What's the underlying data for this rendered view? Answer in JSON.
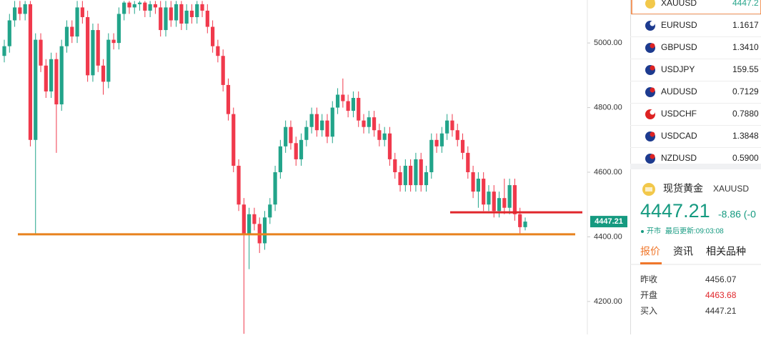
{
  "chart_data": {
    "type": "candlestick",
    "open": [
      4960,
      4990,
      5070,
      5110,
      5090,
      5120,
      4700,
      5010,
      4930,
      4850,
      4950,
      4810,
      4990,
      5050,
      5020,
      5110,
      5080,
      4900,
      5040,
      4930,
      4880,
      5010,
      5000,
      5090,
      5125,
      5110,
      5120,
      5125,
      5100,
      5120,
      5110,
      5040,
      5110,
      5070,
      5120,
      5060,
      5100,
      5080,
      5120,
      5100,
      5050,
      4990,
      4960,
      4870,
      4780,
      4620,
      4500,
      4410,
      4470,
      4440,
      4380,
      4460,
      4500,
      4600,
      4680,
      4740,
      4690,
      4640,
      4700,
      4740,
      4780,
      4730,
      4760,
      4710,
      4800,
      4840,
      4820,
      4790,
      4830,
      4760,
      4740,
      4770,
      4730,
      4700,
      4720,
      4640,
      4600,
      4560,
      4620,
      4560,
      4640,
      4560,
      4600,
      4700,
      4680,
      4720,
      4760,
      4730,
      4700,
      4660,
      4600,
      4540,
      4580,
      4500,
      4540,
      4480,
      4520,
      4490,
      4560,
      4470,
      4430
    ],
    "high": [
      5010,
      5090,
      5130,
      5130,
      5130,
      5130,
      5030,
      5030,
      4950,
      4970,
      4970,
      5010,
      5070,
      5070,
      5130,
      5130,
      5100,
      5060,
      5060,
      4950,
      5030,
      5030,
      5110,
      5130,
      5130,
      5130,
      5130,
      5130,
      5130,
      5130,
      5130,
      5130,
      5130,
      5130,
      5130,
      5120,
      5120,
      5130,
      5130,
      5120,
      5070,
      5010,
      4980,
      4890,
      4800,
      4640,
      4520,
      4490,
      4490,
      4460,
      4480,
      4520,
      4620,
      4700,
      4760,
      4760,
      4710,
      4720,
      4760,
      4800,
      4800,
      4780,
      4780,
      4820,
      4860,
      4890,
      4840,
      4850,
      4850,
      4780,
      4790,
      4790,
      4750,
      4740,
      4740,
      4660,
      4620,
      4640,
      4640,
      4660,
      4660,
      4620,
      4720,
      4720,
      4740,
      4780,
      4780,
      4750,
      4720,
      4680,
      4620,
      4600,
      4600,
      4560,
      4560,
      4540,
      4580,
      4580,
      4580,
      4490,
      4460
    ],
    "low": [
      4940,
      4970,
      5050,
      5070,
      5070,
      4680,
      4410,
      4910,
      4830,
      4830,
      4660,
      4790,
      4970,
      5000,
      5000,
      5060,
      4880,
      4880,
      4910,
      4840,
      4860,
      4980,
      4980,
      5070,
      5090,
      5090,
      5100,
      5080,
      5080,
      5090,
      5020,
      5020,
      5050,
      5050,
      5040,
      5040,
      5060,
      5060,
      5080,
      5030,
      4970,
      4940,
      4850,
      4760,
      4600,
      4480,
      4100,
      4300,
      4420,
      4350,
      4360,
      4440,
      4480,
      4580,
      4660,
      4670,
      4620,
      4620,
      4680,
      4720,
      4710,
      4710,
      4690,
      4690,
      4780,
      4800,
      4770,
      4770,
      4740,
      4720,
      4720,
      4710,
      4680,
      4680,
      4620,
      4580,
      4540,
      4540,
      4540,
      4540,
      4540,
      4540,
      4580,
      4660,
      4660,
      4700,
      4710,
      4680,
      4640,
      4580,
      4520,
      4490,
      4480,
      4480,
      4460,
      4460,
      4470,
      4470,
      4450,
      4410,
      4420
    ],
    "close": [
      4990,
      5070,
      5110,
      5090,
      5120,
      4700,
      5010,
      4930,
      4850,
      4950,
      4810,
      4990,
      5050,
      5020,
      5110,
      5080,
      4900,
      5040,
      4930,
      4880,
      5010,
      5000,
      5090,
      5125,
      5110,
      5120,
      5125,
      5100,
      5120,
      5110,
      5040,
      5110,
      5070,
      5120,
      5060,
      5100,
      5080,
      5120,
      5100,
      5050,
      4990,
      4960,
      4870,
      4780,
      4620,
      4500,
      4410,
      4470,
      4440,
      4380,
      4460,
      4500,
      4600,
      4680,
      4740,
      4690,
      4640,
      4700,
      4740,
      4780,
      4730,
      4760,
      4710,
      4800,
      4840,
      4820,
      4790,
      4830,
      4760,
      4740,
      4770,
      4730,
      4700,
      4720,
      4640,
      4600,
      4560,
      4620,
      4560,
      4640,
      4560,
      4600,
      4700,
      4680,
      4720,
      4760,
      4730,
      4700,
      4660,
      4600,
      4540,
      4580,
      4500,
      4540,
      4480,
      4520,
      4490,
      4560,
      4470,
      4430,
      4447.21
    ],
    "up_color": "#22a48a",
    "down_color": "#f0394c",
    "ylim": [
      4098,
      5133
    ],
    "yticks": [
      {
        "value": 4200,
        "label": "4200.00"
      },
      {
        "value": 4400,
        "label": "4400.00"
      },
      {
        "value": 4600,
        "label": "4600.00"
      },
      {
        "value": 4800,
        "label": "4800.00"
      },
      {
        "value": 5000,
        "label": "5000.00"
      }
    ],
    "hlines": [
      {
        "value": 4408,
        "color": "#e8821e"
      },
      {
        "value": 4476,
        "color": "#e0262b"
      }
    ],
    "last_price": 4447.21,
    "last_price_color": "#159a80"
  },
  "watchlist": [
    {
      "symbol": "XAUUSD",
      "price": "4447.2"
    },
    {
      "symbol": "EURUSD",
      "price": "1.1617"
    },
    {
      "symbol": "GBPUSD",
      "price": "1.3410"
    },
    {
      "symbol": "USDJPY",
      "price": "159.55"
    },
    {
      "symbol": "AUDUSD",
      "price": "0.7129"
    },
    {
      "symbol": "USDCHF",
      "price": "0.7880"
    },
    {
      "symbol": "USDCAD",
      "price": "1.3848"
    },
    {
      "symbol": "NZDUSD",
      "price": "0.5900"
    }
  ],
  "quote": {
    "name": "现货黄金",
    "symbol": "XAUUSD",
    "price": "4447.21",
    "change": "-8.86 (-0",
    "status": "开市",
    "updated": "最后更新:09:03:08",
    "tabs": [
      "报价",
      "资讯",
      "相关品种"
    ],
    "rows": [
      [
        "昨收",
        "4456.07"
      ],
      [
        "开盘",
        "4463.68"
      ],
      [
        "买入",
        "4447.21"
      ]
    ]
  }
}
